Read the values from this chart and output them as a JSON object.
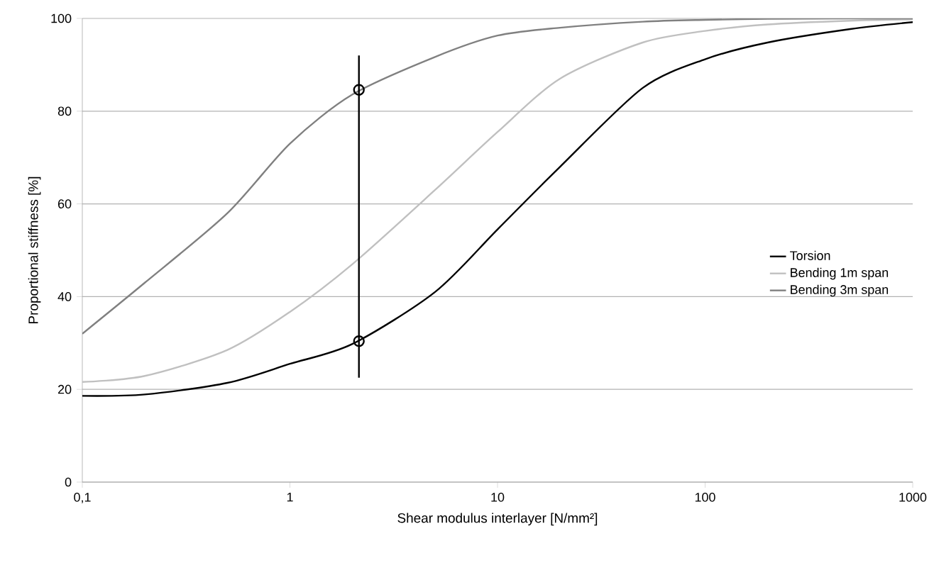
{
  "chart_data": {
    "type": "line",
    "xlabel": "Shear modulus interlayer [N/mm²]",
    "ylabel": "Proportional stiffness [%]",
    "log": "x",
    "grid": "y",
    "legend": "right",
    "marker": "none",
    "line_style": "solid",
    "xlim": [
      0.1,
      1000
    ],
    "ylim": [
      0,
      100
    ],
    "xticks": [
      {
        "value": 0.1,
        "label": "0,1"
      },
      1,
      10,
      100,
      1000
    ],
    "yticks": [
      0,
      20,
      40,
      60,
      80,
      100
    ],
    "series": [
      {
        "name": "Torsion",
        "color": "#000000",
        "x": [
          0.1,
          0.2,
          0.5,
          1,
          2,
          5,
          10,
          20,
          50,
          100,
          200,
          500,
          1000
        ],
        "values": [
          18.6,
          18.9,
          21.4,
          25.5,
          29.8,
          41,
          54.5,
          68,
          85,
          91.2,
          94.8,
          97.7,
          99.2
        ]
      },
      {
        "name": "Bending 1m span",
        "color": "#c0c0c0",
        "x": [
          0.1,
          0.2,
          0.5,
          1,
          2,
          5,
          10,
          20,
          50,
          100,
          200,
          500,
          1000
        ],
        "values": [
          21.6,
          22.9,
          28.5,
          36.7,
          47,
          63,
          75.5,
          87,
          94.8,
          97.3,
          98.7,
          99.5,
          99.8
        ]
      },
      {
        "name": "Bending 3m span",
        "color": "#808080",
        "x": [
          0.1,
          0.2,
          0.5,
          1,
          2,
          5,
          10,
          20,
          50,
          100,
          200,
          500,
          1000
        ],
        "values": [
          32,
          43,
          58,
          73,
          83.6,
          91.7,
          96.3,
          98,
          99.3,
          99.7,
          99.9,
          100,
          100
        ]
      },
      {
        "type": "line",
        "color": "#000000",
        "x": [
          2.15,
          2.15
        ],
        "values": [
          22.5,
          92
        ]
      },
      {
        "type": "scatter",
        "marker": "circle",
        "color": "#000000",
        "x": [
          2.15,
          2.15
        ],
        "values": [
          84.6,
          30.4
        ]
      }
    ]
  }
}
